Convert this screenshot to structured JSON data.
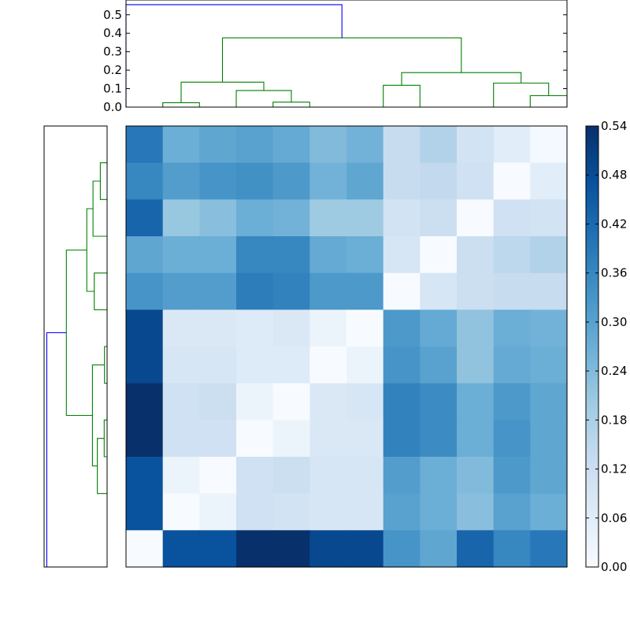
{
  "chart_data": [
    {
      "type": "dendrogram",
      "orientation": "top",
      "leaf_count": 12,
      "ylim": [
        0,
        0.58
      ],
      "ticks": [
        0.0,
        0.1,
        0.2,
        0.3,
        0.4,
        0.5
      ],
      "tick_labels": [
        "0.0",
        "0.1",
        "0.2",
        "0.3",
        "0.4",
        "0.5"
      ],
      "link_color": "#008000",
      "root_color": "#0000ff",
      "links": [
        {
          "x": [
            0.5,
            0.5,
            1.5,
            1.5
          ],
          "y": [
            0.0,
            0.024,
            0.024,
            0.0
          ]
        },
        {
          "x": [
            3.5,
            3.5,
            4.5,
            4.5
          ],
          "y": [
            0.0,
            0.027,
            0.027,
            0.0
          ]
        },
        {
          "x": [
            2.5,
            2.5,
            4.0,
            4.0
          ],
          "y": [
            0.0,
            0.09,
            0.09,
            0.027
          ]
        },
        {
          "x": [
            1.0,
            1.0,
            3.25,
            3.25
          ],
          "y": [
            0.024,
            0.135,
            0.135,
            0.09
          ]
        },
        {
          "x": [
            6.5,
            6.5,
            7.5,
            7.5
          ],
          "y": [
            0.0,
            0.118,
            0.118,
            0.0
          ]
        },
        {
          "x": [
            10.5,
            10.5,
            11.5,
            11.5
          ],
          "y": [
            0.0,
            0.062,
            0.062,
            0.0
          ]
        },
        {
          "x": [
            9.5,
            9.5,
            11.0,
            11.0
          ],
          "y": [
            0.0,
            0.13,
            0.13,
            0.062
          ]
        },
        {
          "x": [
            7.0,
            7.0,
            10.25,
            10.25
          ],
          "y": [
            0.118,
            0.187,
            0.187,
            0.13
          ]
        },
        {
          "x": [
            2.125,
            2.125,
            8.625,
            8.625
          ],
          "y": [
            0.135,
            0.375,
            0.375,
            0.187
          ]
        },
        {
          "x": [
            -0.5,
            -0.5,
            5.375,
            5.375
          ],
          "y": [
            0.0,
            0.555,
            0.555,
            0.375
          ],
          "root": true
        }
      ]
    },
    {
      "type": "dendrogram",
      "orientation": "left",
      "leaf_count": 12,
      "xlim": [
        0.58,
        0
      ],
      "link_color": "#008000",
      "root_color": "#0000ff",
      "links": [
        {
          "x": [
            0.0,
            0.062,
            0.062,
            0.0
          ],
          "y": [
            0.5,
            0.5,
            1.5,
            1.5
          ]
        },
        {
          "x": [
            0.0,
            0.13,
            0.13,
            0.062
          ],
          "y": [
            2.5,
            2.5,
            1.0,
            1.0
          ]
        },
        {
          "x": [
            0.0,
            0.118,
            0.118,
            0.0
          ],
          "y": [
            3.5,
            3.5,
            4.5,
            4.5
          ]
        },
        {
          "x": [
            0.13,
            0.187,
            0.187,
            0.118
          ],
          "y": [
            1.75,
            1.75,
            4.0,
            4.0
          ]
        },
        {
          "x": [
            0.0,
            0.024,
            0.024,
            0.0
          ],
          "y": [
            5.5,
            5.5,
            6.5,
            6.5
          ]
        },
        {
          "x": [
            0.0,
            0.027,
            0.027,
            0.0
          ],
          "y": [
            7.5,
            7.5,
            8.5,
            8.5
          ]
        },
        {
          "x": [
            0.027,
            0.09,
            0.09,
            0.0
          ],
          "y": [
            8.0,
            8.0,
            9.5,
            9.5
          ]
        },
        {
          "x": [
            0.024,
            0.135,
            0.135,
            0.09
          ],
          "y": [
            6.0,
            6.0,
            8.75,
            8.75
          ]
        },
        {
          "x": [
            0.187,
            0.375,
            0.375,
            0.135
          ],
          "y": [
            2.875,
            2.875,
            7.375,
            7.375
          ]
        },
        {
          "x": [
            0.375,
            0.555,
            0.555,
            0.0
          ],
          "y": [
            5.125,
            5.125,
            11.5,
            11.5
          ],
          "root": true
        }
      ]
    },
    {
      "type": "heatmap",
      "rows": 12,
      "cols": 12,
      "colormap": "Blues",
      "vmin": 0.0,
      "vmax": 0.54,
      "values": [
        [
          0.39,
          0.27,
          0.29,
          0.3,
          0.28,
          0.24,
          0.26,
          0.13,
          0.17,
          0.1,
          0.06,
          0.01
        ],
        [
          0.36,
          0.31,
          0.33,
          0.34,
          0.32,
          0.26,
          0.29,
          0.13,
          0.14,
          0.11,
          0.0,
          0.06
        ],
        [
          0.43,
          0.21,
          0.23,
          0.27,
          0.26,
          0.2,
          0.2,
          0.1,
          0.12,
          0.0,
          0.11,
          0.1
        ],
        [
          0.29,
          0.27,
          0.27,
          0.36,
          0.36,
          0.28,
          0.27,
          0.09,
          0.0,
          0.12,
          0.15,
          0.17
        ],
        [
          0.33,
          0.31,
          0.31,
          0.38,
          0.37,
          0.32,
          0.32,
          0.0,
          0.09,
          0.12,
          0.13,
          0.13
        ],
        [
          0.49,
          0.08,
          0.08,
          0.07,
          0.08,
          0.03,
          0.0,
          0.32,
          0.28,
          0.22,
          0.27,
          0.26
        ],
        [
          0.49,
          0.09,
          0.09,
          0.07,
          0.07,
          0.0,
          0.03,
          0.33,
          0.3,
          0.22,
          0.28,
          0.27
        ],
        [
          0.54,
          0.11,
          0.12,
          0.03,
          0.0,
          0.08,
          0.09,
          0.37,
          0.35,
          0.27,
          0.32,
          0.29
        ],
        [
          0.54,
          0.11,
          0.11,
          0.0,
          0.03,
          0.08,
          0.08,
          0.37,
          0.35,
          0.27,
          0.33,
          0.29
        ],
        [
          0.47,
          0.03,
          0.0,
          0.11,
          0.12,
          0.09,
          0.09,
          0.31,
          0.27,
          0.24,
          0.32,
          0.29
        ],
        [
          0.47,
          0.0,
          0.03,
          0.11,
          0.1,
          0.09,
          0.09,
          0.3,
          0.27,
          0.23,
          0.3,
          0.27
        ],
        [
          0.0,
          0.47,
          0.47,
          0.54,
          0.54,
          0.49,
          0.49,
          0.33,
          0.29,
          0.43,
          0.36,
          0.39
        ]
      ]
    },
    {
      "type": "colorbar",
      "vmin": 0.0,
      "vmax": 0.54,
      "ticks": [
        0.0,
        0.06,
        0.12,
        0.18,
        0.24,
        0.3,
        0.36,
        0.42,
        0.48,
        0.54
      ],
      "tick_labels": [
        "0.00",
        "0.06",
        "0.12",
        "0.18",
        "0.24",
        "0.30",
        "0.36",
        "0.42",
        "0.48",
        "0.54"
      ]
    }
  ]
}
